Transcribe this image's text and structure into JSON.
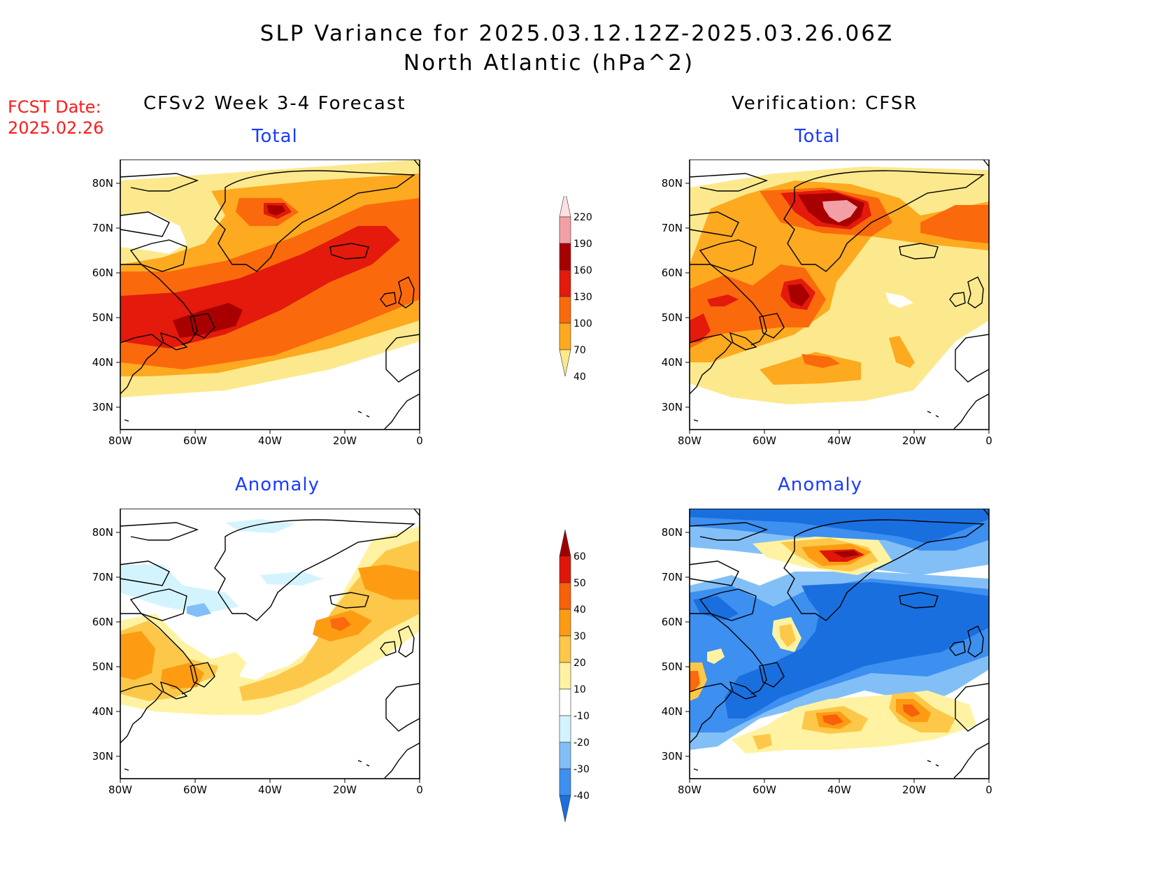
{
  "header": {
    "title_line1": "SLP Variance for 2025.03.12.12Z-2025.03.26.06Z",
    "title_line2": "North Atlantic (hPa^2)"
  },
  "forecast_date": {
    "label": "FCST Date:",
    "value": "2025.02.26"
  },
  "columns": {
    "left": "CFSv2 Week 3-4 Forecast",
    "right": "Verification: CFSR"
  },
  "panel_titles": {
    "total": "Total",
    "anomaly": "Anomaly"
  },
  "axes": {
    "lat_labels": [
      "30N",
      "40N",
      "50N",
      "60N",
      "70N",
      "80N"
    ],
    "lon_labels": [
      "80W",
      "60W",
      "40W",
      "20W",
      "0"
    ]
  },
  "total_colorbar": {
    "levels": [
      "40",
      "70",
      "100",
      "130",
      "160",
      "190",
      "220"
    ],
    "colors": [
      "#fde98d",
      "#fdaa20",
      "#fa6a0c",
      "#e31a0c",
      "#a80000",
      "#f2a0a6",
      "#fde1e1"
    ]
  },
  "anomaly_colorbar": {
    "levels": [
      "-40",
      "-30",
      "-20",
      "-10",
      "10",
      "20",
      "30",
      "40",
      "50",
      "60"
    ],
    "colors": [
      "#1a6fdf",
      "#3d8ff0",
      "#82bff7",
      "#d3f4ff",
      "#ffffff",
      "#fff3a3",
      "#fdc84a",
      "#fd9c12",
      "#f8600a",
      "#e0160a",
      "#a00000"
    ]
  }
}
